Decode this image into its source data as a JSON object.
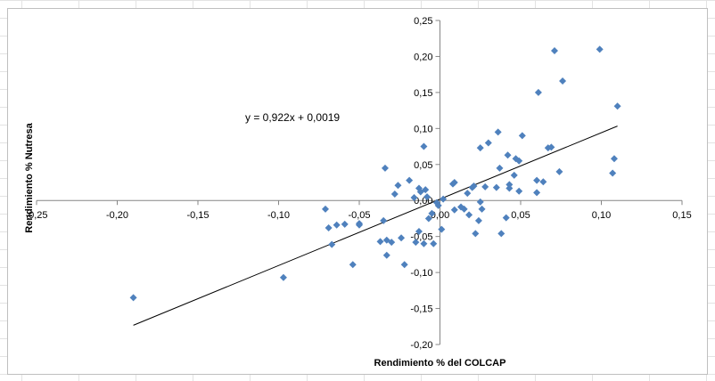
{
  "chart_data": {
    "type": "scatter",
    "xlabel": "Rendimiento % del COLCAP",
    "ylabel": "Rendimiento % Nutresa",
    "xlim": [
      -0.25,
      0.15
    ],
    "ylim": [
      -0.2,
      0.25
    ],
    "x_ticks": [
      "-0,25",
      "-0,20",
      "-0,15",
      "-0,10",
      "-0,05",
      "0,00",
      "0,05",
      "0,10",
      "0,15"
    ],
    "y_ticks": [
      "-0,20",
      "-0,15",
      "-0,10",
      "-0,05",
      "0,00",
      "0,05",
      "0,10",
      "0,15",
      "0,20",
      "0,25"
    ],
    "x_tick_values": [
      -0.25,
      -0.2,
      -0.15,
      -0.1,
      -0.05,
      0.0,
      0.05,
      0.1,
      0.15
    ],
    "y_tick_values": [
      -0.2,
      -0.15,
      -0.1,
      -0.05,
      0.0,
      0.05,
      0.1,
      0.15,
      0.2,
      0.25
    ],
    "grid": false,
    "marker_color": "#4f81bd",
    "trendline": {
      "equation": "y = 0,922x + 0,0019",
      "slope": 0.922,
      "intercept": 0.0019,
      "x_range": [
        -0.19,
        0.11
      ],
      "color": "#000000"
    },
    "points": [
      [
        -0.19,
        -0.135
      ],
      [
        -0.097,
        -0.107
      ],
      [
        -0.071,
        -0.012
      ],
      [
        -0.069,
        -0.038
      ],
      [
        -0.064,
        -0.034
      ],
      [
        -0.067,
        -0.061
      ],
      [
        -0.059,
        -0.033
      ],
      [
        -0.054,
        -0.089
      ],
      [
        -0.05,
        -0.032
      ],
      [
        -0.05,
        -0.034
      ],
      [
        -0.037,
        -0.057
      ],
      [
        -0.035,
        -0.028
      ],
      [
        -0.033,
        -0.055
      ],
      [
        -0.033,
        -0.076
      ],
      [
        -0.034,
        0.045
      ],
      [
        -0.03,
        -0.058
      ],
      [
        -0.028,
        0.009
      ],
      [
        -0.026,
        0.021
      ],
      [
        -0.024,
        -0.052
      ],
      [
        -0.022,
        -0.089
      ],
      [
        -0.019,
        0.028
      ],
      [
        -0.016,
        0.004
      ],
      [
        -0.015,
        -0.058
      ],
      [
        -0.013,
        -0.043
      ],
      [
        -0.013,
        0.017
      ],
      [
        -0.012,
        0.012
      ],
      [
        -0.01,
        -0.06
      ],
      [
        -0.01,
        0.075
      ],
      [
        -0.009,
        0.015
      ],
      [
        -0.008,
        0.005
      ],
      [
        -0.007,
        -0.025
      ],
      [
        -0.005,
        -0.018
      ],
      [
        -0.004,
        -0.06
      ],
      [
        -0.002,
        -0.003
      ],
      [
        -0.001,
        -0.007
      ],
      [
        0.001,
        -0.04
      ],
      [
        0.002,
        0.002
      ],
      [
        0.008,
        0.023
      ],
      [
        0.009,
        0.025
      ],
      [
        0.009,
        -0.013
      ],
      [
        0.013,
        -0.009
      ],
      [
        0.015,
        -0.012
      ],
      [
        0.017,
        0.01
      ],
      [
        0.018,
        -0.02
      ],
      [
        0.02,
        0.018
      ],
      [
        0.021,
        0.02
      ],
      [
        0.022,
        -0.046
      ],
      [
        0.024,
        -0.028
      ],
      [
        0.025,
        -0.002
      ],
      [
        0.025,
        0.073
      ],
      [
        0.026,
        -0.012
      ],
      [
        0.028,
        0.019
      ],
      [
        0.03,
        0.08
      ],
      [
        0.035,
        0.018
      ],
      [
        0.036,
        0.095
      ],
      [
        0.037,
        0.045
      ],
      [
        0.038,
        -0.046
      ],
      [
        0.041,
        -0.024
      ],
      [
        0.042,
        0.063
      ],
      [
        0.043,
        0.017
      ],
      [
        0.043,
        0.022
      ],
      [
        0.046,
        0.035
      ],
      [
        0.047,
        0.058
      ],
      [
        0.049,
        0.013
      ],
      [
        0.049,
        0.055
      ],
      [
        0.051,
        0.09
      ],
      [
        0.06,
        0.011
      ],
      [
        0.06,
        0.028
      ],
      [
        0.061,
        0.15
      ],
      [
        0.064,
        0.026
      ],
      [
        0.067,
        0.073
      ],
      [
        0.069,
        0.074
      ],
      [
        0.071,
        0.208
      ],
      [
        0.074,
        0.04
      ],
      [
        0.076,
        0.166
      ],
      [
        0.099,
        0.21
      ],
      [
        0.107,
        0.038
      ],
      [
        0.108,
        0.058
      ],
      [
        0.11,
        0.131
      ]
    ]
  }
}
